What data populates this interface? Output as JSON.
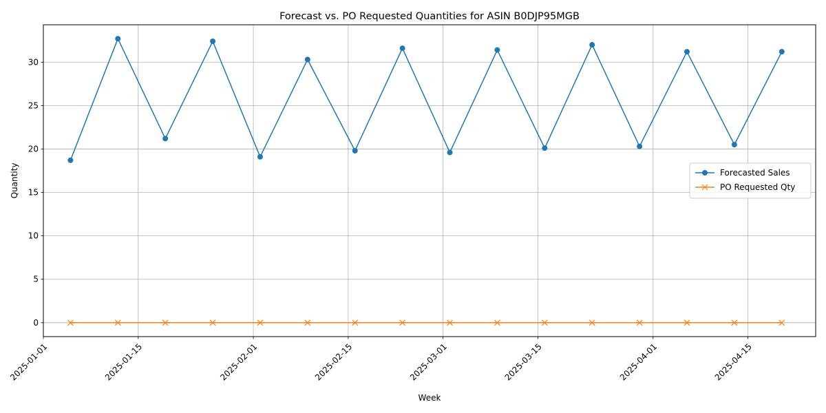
{
  "chart_data": {
    "type": "line",
    "title": "Forecast vs. PO Requested Quantities for ASIN B0DJP95MGB",
    "xlabel": "Week",
    "ylabel": "Quantity",
    "x": [
      "2025-01-05",
      "2025-01-12",
      "2025-01-19",
      "2025-01-26",
      "2025-02-02",
      "2025-02-09",
      "2025-02-16",
      "2025-02-23",
      "2025-03-02",
      "2025-03-09",
      "2025-03-16",
      "2025-03-23",
      "2025-03-30",
      "2025-04-06",
      "2025-04-13",
      "2025-04-20"
    ],
    "xlim": [
      "2025-01-01",
      "2025-04-25"
    ],
    "ylim": [
      -1.6,
      34.3
    ],
    "x_ticks": [
      "2025-01-01",
      "2025-01-15",
      "2025-02-01",
      "2025-02-15",
      "2025-03-01",
      "2025-03-15",
      "2025-04-01",
      "2025-04-15"
    ],
    "y_ticks": [
      0,
      5,
      10,
      15,
      20,
      25,
      30
    ],
    "grid": true,
    "legend_position": "center-right",
    "series": [
      {
        "name": "Forecasted Sales",
        "color": "#1f77b4",
        "marker": "circle",
        "values": [
          18.7,
          32.7,
          21.2,
          32.4,
          19.1,
          30.3,
          19.8,
          31.6,
          19.6,
          31.4,
          20.1,
          32.0,
          20.3,
          31.2,
          20.5,
          31.2
        ]
      },
      {
        "name": "PO Requested Qty",
        "color": "#ff7f0e",
        "marker": "x",
        "values": [
          0,
          0,
          0,
          0,
          0,
          0,
          0,
          0,
          0,
          0,
          0,
          0,
          0,
          0,
          0,
          0
        ]
      }
    ]
  }
}
